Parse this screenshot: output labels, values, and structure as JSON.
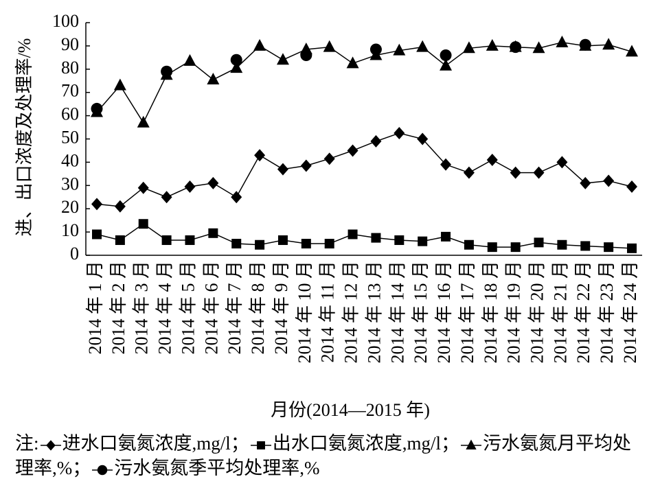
{
  "chart_data": {
    "type": "line",
    "y_label": "进、出口浓度及处理率/%",
    "x_label": "月份(2014—2015 年)",
    "note": "注:",
    "legend_separator": "；",
    "categories": [
      "2014 年 1 月",
      "2014 年 2 月",
      "2014 年 3 月",
      "2014 年 4 月",
      "2014 年 5 月",
      "2014 年 6 月",
      "2014 年 7 月",
      "2014 年 8 月",
      "2014 年 9 月",
      "2014 年 10 月",
      "2014 年 11 月",
      "2014 年 12 月",
      "2014 年 13 月",
      "2014 年 14 月",
      "2014 年 15 月",
      "2014 年 16 月",
      "2014 年 17 月",
      "2014 年 18 月",
      "2014 年 19 月",
      "2014 年 20 月",
      "2014 年 21 月",
      "2014 年 22 月",
      "2014 年 23 月",
      "2014 年 24 月"
    ],
    "series": [
      {
        "name": "进水口氨氮浓度,mg/l",
        "color": "#000000",
        "marker": "diamond",
        "values": [
          22,
          21,
          29,
          25,
          29.5,
          31,
          25,
          43,
          37,
          38.5,
          41.5,
          45,
          49,
          52.5,
          50,
          39,
          35.5,
          41,
          35.5,
          35.5,
          40,
          31,
          32,
          29.5
        ]
      },
      {
        "name": "出水口氨氮浓度,mg/l",
        "color": "#000000",
        "marker": "square",
        "values": [
          9,
          6.5,
          13.5,
          6.5,
          6.5,
          9.5,
          5,
          4.5,
          6.5,
          5,
          5,
          9,
          7.5,
          6.5,
          6,
          8,
          4.5,
          3.5,
          3.5,
          5.5,
          4.5,
          4,
          3.5,
          3
        ]
      },
      {
        "name": "污水氨氮月平均处理率,%",
        "color": "#000000",
        "marker": "triangle",
        "values": [
          61.5,
          73,
          57,
          77.5,
          83.5,
          75.5,
          80.5,
          90,
          84,
          88.5,
          89.5,
          82.5,
          86,
          88,
          89.5,
          81.5,
          89,
          90,
          89.5,
          89,
          91.5,
          90,
          90.5,
          87.5
        ]
      },
      {
        "name": "污水氨氮季平均处理率,%",
        "color": "#000000",
        "marker": "circle",
        "values": [
          63,
          null,
          null,
          79,
          null,
          null,
          84,
          null,
          null,
          86,
          null,
          null,
          88.5,
          null,
          null,
          86,
          null,
          null,
          89.5,
          null,
          null,
          90.5,
          null,
          null
        ]
      }
    ],
    "ylim": [
      0,
      100
    ],
    "yticks": [
      0,
      10,
      20,
      30,
      40,
      50,
      60,
      70,
      80,
      90,
      100
    ]
  }
}
